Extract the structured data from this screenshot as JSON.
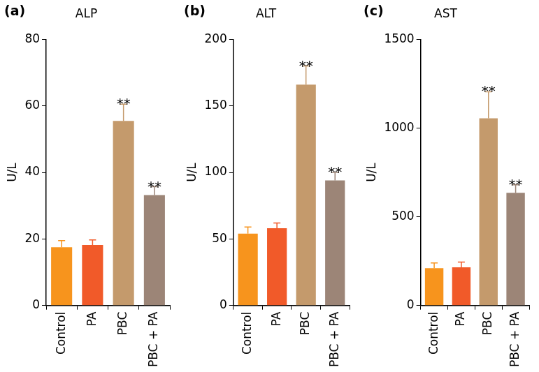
{
  "chart_data": [
    {
      "type": "bar",
      "panel_label": "(a)",
      "title": "ALP",
      "ylabel": "U/L",
      "categories": [
        "Control",
        "PA",
        "PBC",
        "PBC + PA"
      ],
      "values": [
        17.5,
        18.2,
        55.5,
        33.2
      ],
      "errors": [
        2,
        1.5,
        5,
        2.5
      ],
      "colors": [
        "#f7941d",
        "#f15a29",
        "#c49a6c",
        "#9c8577"
      ],
      "annotations": [
        {
          "category": "PBC",
          "text": "**"
        },
        {
          "category": "PBC + PA",
          "text": "**"
        }
      ],
      "ylim": [
        0,
        80
      ],
      "yticks": [
        0,
        20,
        40,
        60,
        80
      ],
      "grid": false
    },
    {
      "type": "bar",
      "panel_label": "(b)",
      "title": "ALT",
      "ylabel": "U/L",
      "categories": [
        "Control",
        "PA",
        "PBC",
        "PBC + PA"
      ],
      "values": [
        54,
        58,
        166,
        94
      ],
      "errors": [
        5,
        4,
        14,
        6
      ],
      "colors": [
        "#f7941d",
        "#f15a29",
        "#c49a6c",
        "#9c8577"
      ],
      "annotations": [
        {
          "category": "PBC",
          "text": "**"
        },
        {
          "category": "PBC + PA",
          "text": "**"
        }
      ],
      "ylim": [
        0,
        200
      ],
      "yticks": [
        0,
        50,
        100,
        150,
        200
      ],
      "grid": false
    },
    {
      "type": "bar",
      "panel_label": "(c)",
      "title": "AST",
      "ylabel": "U/L",
      "categories": [
        "Control",
        "PA",
        "PBC",
        "PBC + PA"
      ],
      "values": [
        210,
        215,
        1055,
        635
      ],
      "errors": [
        30,
        30,
        150,
        45
      ],
      "colors": [
        "#f7941d",
        "#f15a29",
        "#c49a6c",
        "#9c8577"
      ],
      "annotations": [
        {
          "category": "PBC",
          "text": "**"
        },
        {
          "category": "PBC + PA",
          "text": "**"
        }
      ],
      "ylim": [
        0,
        1500
      ],
      "yticks": [
        0,
        500,
        1000,
        1500
      ],
      "grid": false
    }
  ]
}
